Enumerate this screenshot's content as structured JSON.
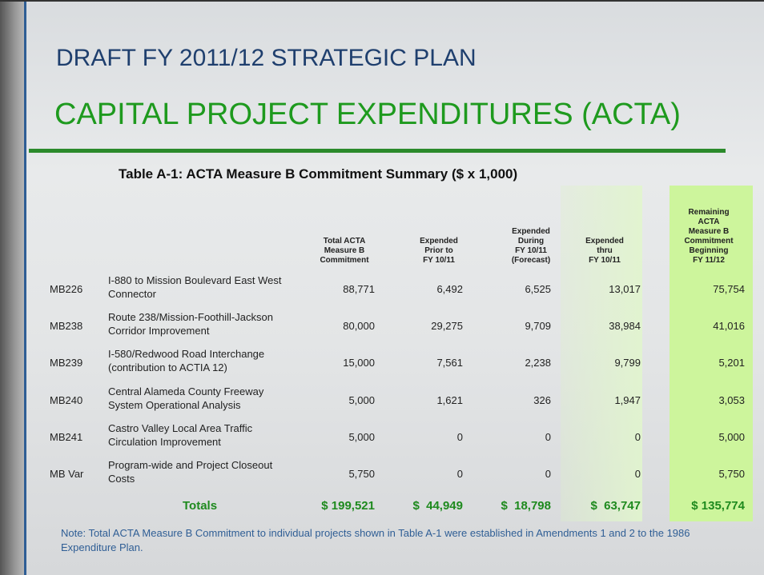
{
  "header": {
    "title_line1": "DRAFT FY 2011/12 STRATEGIC PLAN",
    "title_line2": "CAPITAL PROJECT EXPENDITURES (ACTA)"
  },
  "table": {
    "title": "Table A-1:  ACTA Measure B Commitment Summary ($ x 1,000)",
    "columns": [
      [
        "Total ACTA",
        "Measure B",
        "Commitment"
      ],
      [
        "Expended",
        "Prior to",
        "FY 10/11"
      ],
      [
        "Expended",
        "During",
        "FY 10/11",
        "(Forecast)"
      ],
      [
        "Expended",
        "thru",
        "FY 10/11"
      ],
      [
        "Remaining",
        "ACTA",
        "Measure B",
        "Commitment",
        "Beginning",
        "FY 11/12"
      ]
    ],
    "rows": [
      [
        "MB226",
        "I-880 to Mission Boulevard East West Connector",
        "88,771",
        "6,492",
        "6,525",
        "13,017",
        "75,754"
      ],
      [
        "MB238",
        "Route 238/Mission-Foothill-Jackson Corridor Improvement",
        "80,000",
        "29,275",
        "9,709",
        "38,984",
        "41,016"
      ],
      [
        "MB239",
        "I-580/Redwood Road Interchange (contribution to ACTIA 12)",
        "15,000",
        "7,561",
        "2,238",
        "9,799",
        "5,201"
      ],
      [
        "MB240",
        "Central Alameda County Freeway System Operational Analysis",
        "5,000",
        "1,621",
        "326",
        "1,947",
        "3,053"
      ],
      [
        "MB241",
        "Castro Valley Local Area Traffic Circulation Improvement",
        "5,000",
        "0",
        "0",
        "0",
        "5,000"
      ],
      [
        "MB Var",
        "Program-wide and Project Closeout Costs",
        "5,750",
        "0",
        "0",
        "0",
        "5,750"
      ]
    ],
    "totals_label": "Totals",
    "totals": [
      "$ 199,521",
      "$  44,949",
      "$  18,798",
      "$  63,747",
      "$ 135,774"
    ]
  },
  "note": "Note:  Total ACTA Measure B Commitment to individual projects shown in Table A-1 were established in Amendments 1 and 2 to the 1986 Expenditure Plan."
}
